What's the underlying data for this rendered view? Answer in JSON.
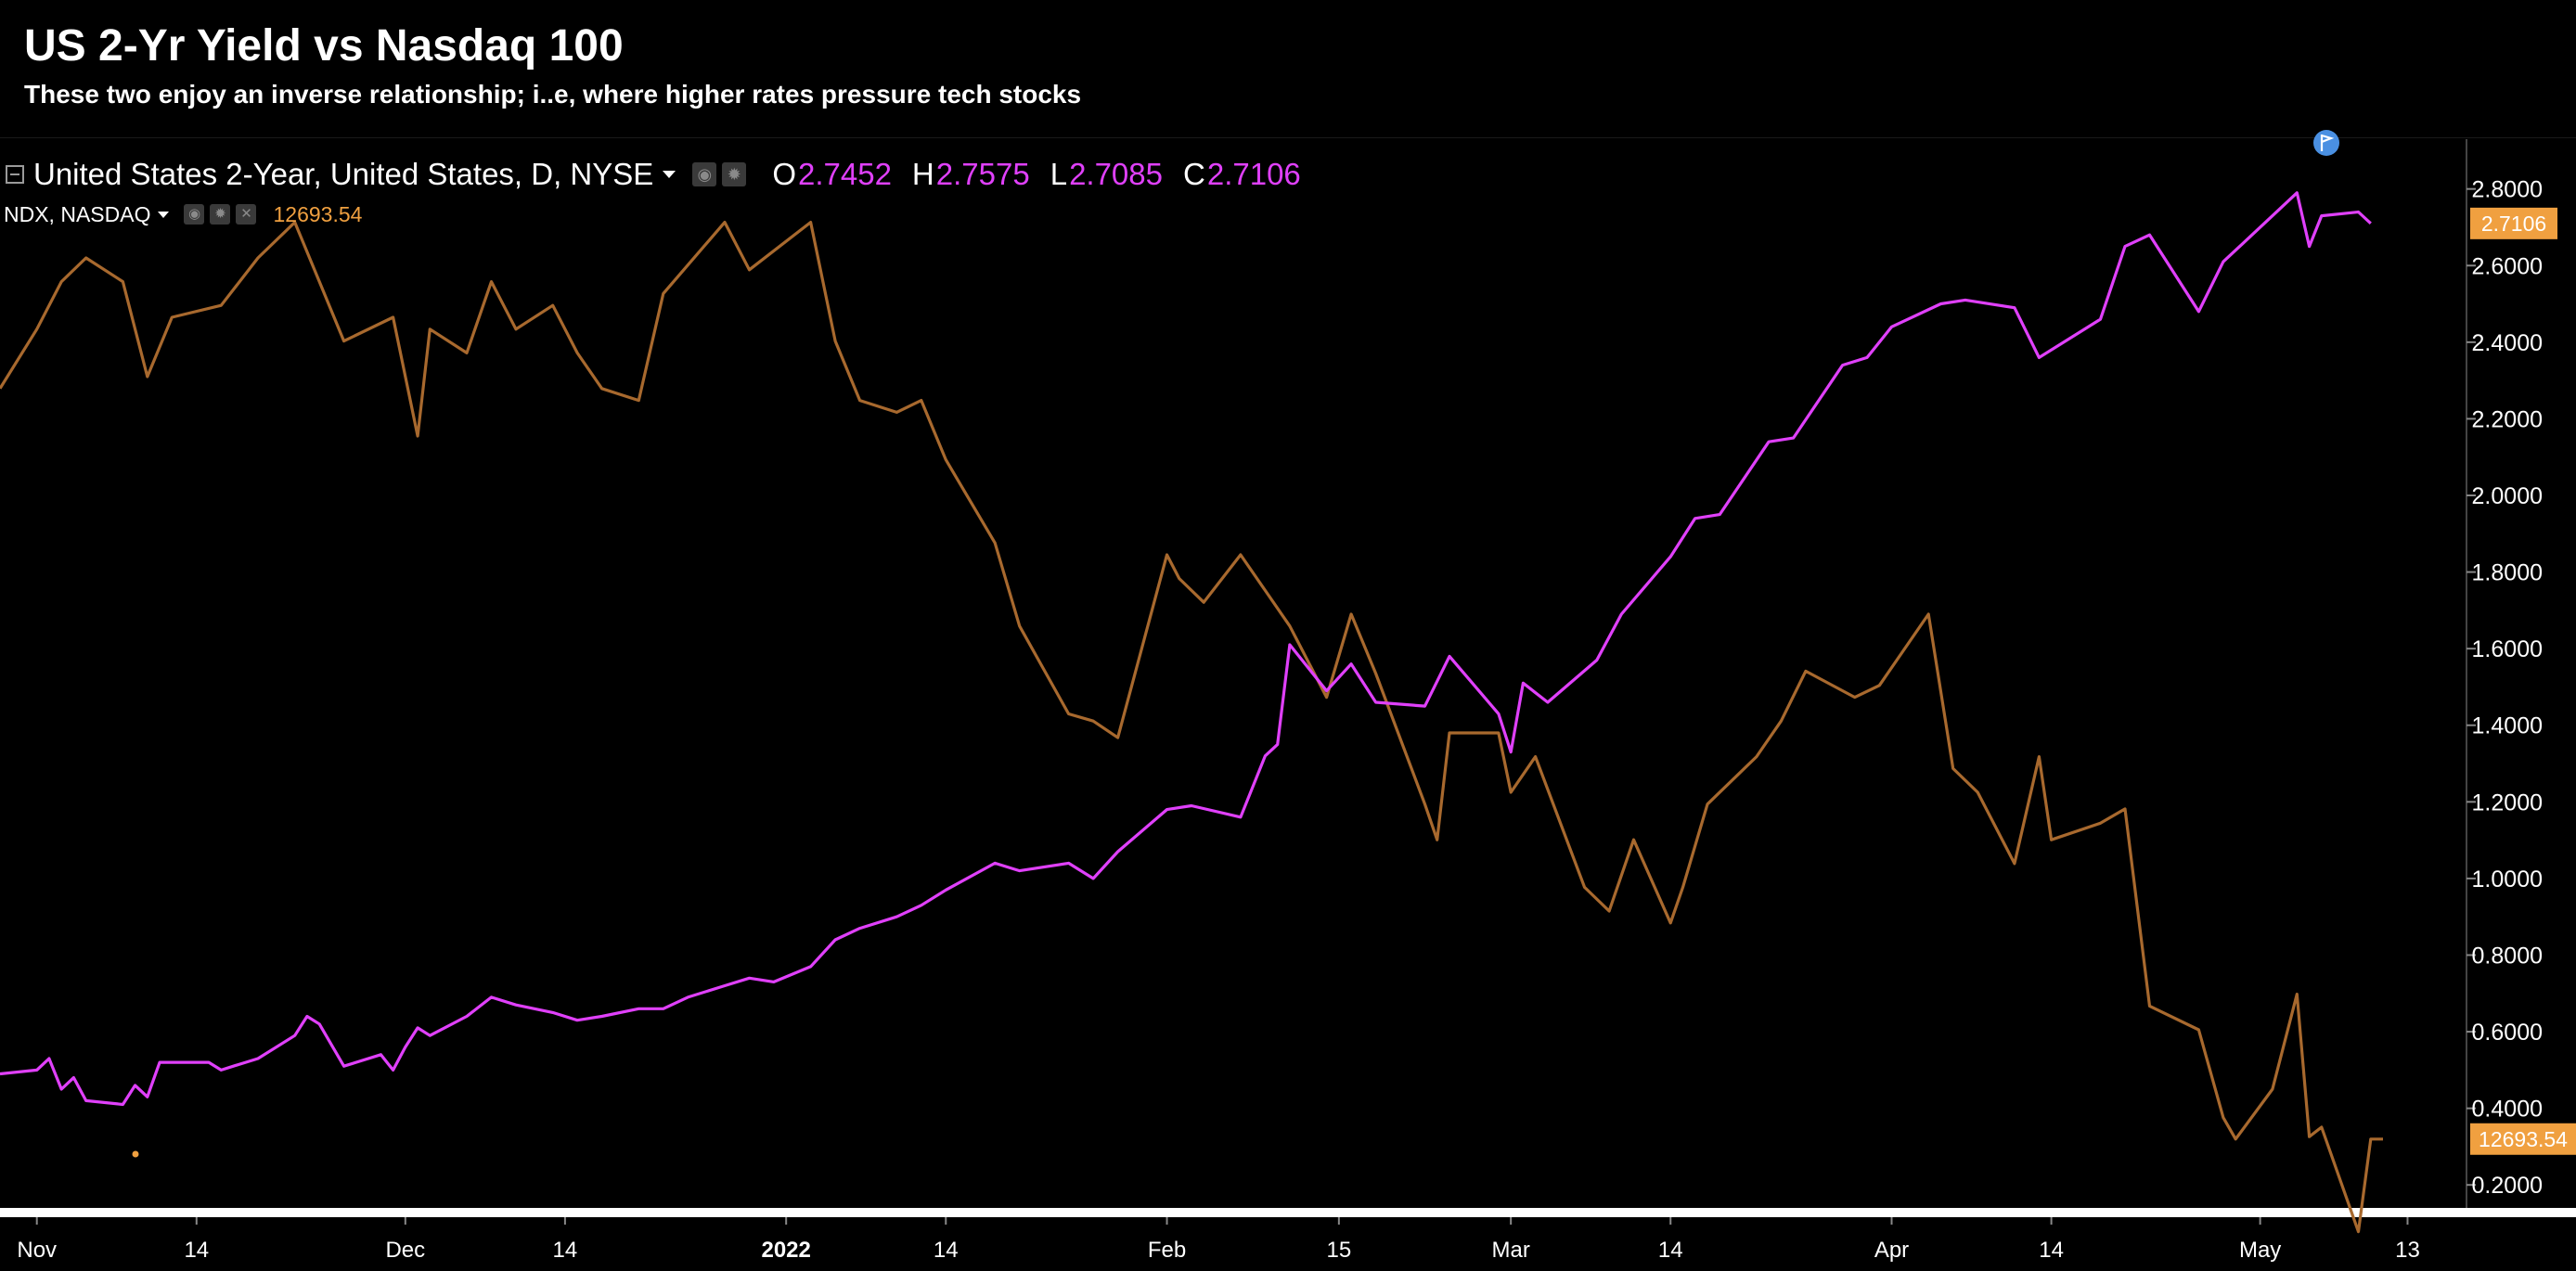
{
  "header": {
    "title": "US 2-Yr Yield vs Nasdaq 100",
    "subtitle": "These two enjoy an inverse relationship; i..e, where higher rates pressure tech stocks"
  },
  "legend": {
    "primary": {
      "name": "United States 2-Year, United States, D, NYSE",
      "ohlc": [
        {
          "key": "O",
          "value": "2.7452"
        },
        {
          "key": "H",
          "value": "2.7575"
        },
        {
          "key": "L",
          "value": "2.7085"
        },
        {
          "key": "C",
          "value": "2.7106"
        }
      ]
    },
    "secondary": {
      "name": "NDX, NASDAQ",
      "value": "12693.54"
    }
  },
  "colors": {
    "background": "#000000",
    "yield_line": "#e040fb",
    "ndx_line": "#a8692e",
    "ndx_badge": "#f0a040",
    "axis_text": "#ffffff",
    "flag": "#4a90e2"
  },
  "icons": [
    "collapse-icon",
    "dropdown-caret-icon",
    "eye-icon",
    "gear-icon",
    "close-icon",
    "flag-icon"
  ],
  "chart_data": {
    "type": "line",
    "title": "US 2-Yr Yield vs Nasdaq 100",
    "subtitle": "These two enjoy an inverse relationship; i..e, where higher rates pressure tech stocks",
    "x_ticks": [
      {
        "label": "Nov",
        "date": "2021-11-01"
      },
      {
        "label": "14",
        "date": "2021-11-14"
      },
      {
        "label": "Dec",
        "date": "2021-12-01"
      },
      {
        "label": "14",
        "date": "2021-12-14"
      },
      {
        "label": "2022",
        "date": "2022-01-01",
        "bold": true
      },
      {
        "label": "14",
        "date": "2022-01-14"
      },
      {
        "label": "Feb",
        "date": "2022-02-01"
      },
      {
        "label": "15",
        "date": "2022-02-15"
      },
      {
        "label": "Mar",
        "date": "2022-03-01"
      },
      {
        "label": "14",
        "date": "2022-03-14"
      },
      {
        "label": "Apr",
        "date": "2022-04-01"
      },
      {
        "label": "14",
        "date": "2022-04-14"
      },
      {
        "label": "May",
        "date": "2022-05-01"
      },
      {
        "label": "13",
        "date": "2022-05-13"
      }
    ],
    "y_ticks": [
      "0.2000",
      "0.4000",
      "0.6000",
      "0.8000",
      "1.0000",
      "1.2000",
      "1.4000",
      "1.6000",
      "1.8000",
      "2.0000",
      "2.2000",
      "2.4000",
      "2.6000",
      "2.8000"
    ],
    "ylim": [
      0.14,
      2.93
    ],
    "ndx_range": [
      12400,
      16900
    ],
    "grid": false,
    "legend_position": "top-left",
    "last_value_labels": {
      "yield": "2.7106",
      "ndx": "12693.54"
    },
    "series": [
      {
        "name": "United States 2-Year, United States, D, NYSE",
        "axis": "right",
        "x": [
          "2021-10-29",
          "2021-11-01",
          "2021-11-02",
          "2021-11-03",
          "2021-11-04",
          "2021-11-05",
          "2021-11-08",
          "2021-11-09",
          "2021-11-10",
          "2021-11-11",
          "2021-11-12",
          "2021-11-15",
          "2021-11-16",
          "2021-11-17",
          "2021-11-18",
          "2021-11-19",
          "2021-11-22",
          "2021-11-23",
          "2021-11-24",
          "2021-11-26",
          "2021-11-29",
          "2021-11-30",
          "2021-12-01",
          "2021-12-02",
          "2021-12-03",
          "2021-12-06",
          "2021-12-08",
          "2021-12-10",
          "2021-12-13",
          "2021-12-15",
          "2021-12-17",
          "2021-12-20",
          "2021-12-22",
          "2021-12-24",
          "2021-12-27",
          "2021-12-29",
          "2021-12-31",
          "2022-01-03",
          "2022-01-05",
          "2022-01-07",
          "2022-01-10",
          "2022-01-12",
          "2022-01-14",
          "2022-01-18",
          "2022-01-20",
          "2022-01-24",
          "2022-01-26",
          "2022-01-28",
          "2022-02-01",
          "2022-02-03",
          "2022-02-07",
          "2022-02-09",
          "2022-02-10",
          "2022-02-11",
          "2022-02-14",
          "2022-02-16",
          "2022-02-18",
          "2022-02-22",
          "2022-02-24",
          "2022-02-28",
          "2022-03-01",
          "2022-03-02",
          "2022-03-04",
          "2022-03-08",
          "2022-03-10",
          "2022-03-14",
          "2022-03-16",
          "2022-03-18",
          "2022-03-22",
          "2022-03-24",
          "2022-03-28",
          "2022-03-30",
          "2022-04-01",
          "2022-04-05",
          "2022-04-07",
          "2022-04-11",
          "2022-04-13",
          "2022-04-18",
          "2022-04-20",
          "2022-04-22",
          "2022-04-26",
          "2022-04-28",
          "2022-05-02",
          "2022-05-04",
          "2022-05-05",
          "2022-05-06",
          "2022-05-09",
          "2022-05-10"
        ],
        "values": [
          0.49,
          0.5,
          0.53,
          0.45,
          0.48,
          0.42,
          0.41,
          0.46,
          0.43,
          0.52,
          0.52,
          0.52,
          0.5,
          0.51,
          0.52,
          0.53,
          0.59,
          0.64,
          0.62,
          0.51,
          0.54,
          0.5,
          0.56,
          0.61,
          0.59,
          0.64,
          0.69,
          0.67,
          0.65,
          0.63,
          0.64,
          0.66,
          0.66,
          0.69,
          0.72,
          0.74,
          0.73,
          0.77,
          0.84,
          0.87,
          0.9,
          0.93,
          0.97,
          1.04,
          1.02,
          1.04,
          1.0,
          1.07,
          1.18,
          1.19,
          1.16,
          1.32,
          1.35,
          1.61,
          1.49,
          1.56,
          1.46,
          1.45,
          1.58,
          1.43,
          1.33,
          1.51,
          1.46,
          1.57,
          1.69,
          1.84,
          1.94,
          1.95,
          2.14,
          2.15,
          2.34,
          2.36,
          2.44,
          2.5,
          2.51,
          2.49,
          2.36,
          2.46,
          2.65,
          2.68,
          2.48,
          2.61,
          2.73,
          2.79,
          2.65,
          2.73,
          2.74,
          2.71
        ]
      },
      {
        "name": "NDX, NASDAQ",
        "axis": "left",
        "x": [
          "2021-10-29",
          "2021-11-01",
          "2021-11-03",
          "2021-11-05",
          "2021-11-08",
          "2021-11-10",
          "2021-11-12",
          "2021-11-16",
          "2021-11-19",
          "2021-11-22",
          "2021-11-24",
          "2021-11-26",
          "2021-11-30",
          "2021-12-02",
          "2021-12-03",
          "2021-12-06",
          "2021-12-08",
          "2021-12-10",
          "2021-12-13",
          "2021-12-15",
          "2021-12-17",
          "2021-12-20",
          "2021-12-22",
          "2021-12-27",
          "2021-12-29",
          "2022-01-03",
          "2022-01-05",
          "2022-01-07",
          "2022-01-10",
          "2022-01-12",
          "2022-01-14",
          "2022-01-18",
          "2022-01-20",
          "2022-01-24",
          "2022-01-26",
          "2022-01-28",
          "2022-02-01",
          "2022-02-02",
          "2022-02-04",
          "2022-02-07",
          "2022-02-09",
          "2022-02-11",
          "2022-02-14",
          "2022-02-16",
          "2022-02-18",
          "2022-02-22",
          "2022-02-23",
          "2022-02-24",
          "2022-02-28",
          "2022-03-01",
          "2022-03-03",
          "2022-03-07",
          "2022-03-09",
          "2022-03-11",
          "2022-03-14",
          "2022-03-15",
          "2022-03-17",
          "2022-03-21",
          "2022-03-23",
          "2022-03-25",
          "2022-03-29",
          "2022-03-31",
          "2022-04-04",
          "2022-04-06",
          "2022-04-08",
          "2022-04-11",
          "2022-04-13",
          "2022-04-14",
          "2022-04-18",
          "2022-04-20",
          "2022-04-22",
          "2022-04-26",
          "2022-04-28",
          "2022-04-29",
          "2022-05-02",
          "2022-05-04",
          "2022-05-05",
          "2022-05-06",
          "2022-05-09",
          "2022-05-10",
          "2022-05-11"
        ],
        "values": [
          15850,
          16100,
          16300,
          16400,
          16300,
          15900,
          16150,
          16200,
          16400,
          16550,
          16300,
          16050,
          16150,
          15650,
          16100,
          16000,
          16300,
          16100,
          16200,
          16000,
          15850,
          15800,
          16250,
          16550,
          16350,
          16550,
          16050,
          15800,
          15750,
          15800,
          15550,
          15200,
          14850,
          14480,
          14450,
          14380,
          15150,
          15050,
          14950,
          15150,
          15000,
          14850,
          14550,
          14900,
          14650,
          14100,
          13950,
          14400,
          14400,
          14150,
          14300,
          13750,
          13650,
          13950,
          13600,
          13750,
          14100,
          14300,
          14450,
          14660,
          14550,
          14600,
          14900,
          14250,
          14150,
          13850,
          14300,
          13950,
          14020,
          14080,
          13250,
          13150,
          12780,
          12690,
          12900,
          13300,
          12700,
          12740,
          12300,
          12690,
          12690
        ]
      }
    ]
  }
}
